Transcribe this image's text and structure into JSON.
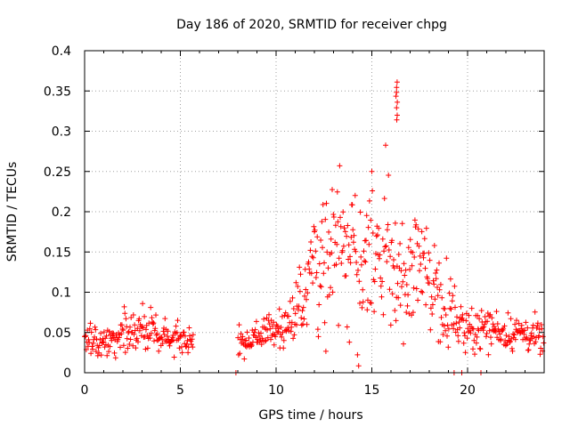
{
  "chart_data": {
    "type": "scatter",
    "title": "Day 186 of 2020, SRMTID for receiver chpg",
    "xlabel": "GPS time / hours",
    "ylabel": "SRMTID / TECUs",
    "xlim": [
      0,
      24
    ],
    "ylim": [
      0,
      0.4
    ],
    "x_ticks": [
      0,
      5,
      10,
      15,
      20
    ],
    "y_ticks": [
      0,
      0.05,
      0.1,
      0.15,
      0.2,
      0.25,
      0.3,
      0.35,
      0.4
    ],
    "x_tick_labels": [
      "0",
      "5",
      "10",
      "15",
      "20"
    ],
    "y_tick_labels": [
      "0",
      "0.05",
      "0.1",
      "0.15",
      "0.2",
      "0.25",
      "0.3",
      "0.35",
      "0.4"
    ],
    "grid": true,
    "marker": "+",
    "color": "#ff0000",
    "series": [
      {
        "name": "SRMTID",
        "profile_hours": [
          0,
          0.5,
          1,
          1.5,
          2,
          2.5,
          3,
          3.5,
          4,
          4.5,
          5,
          5.5,
          8.0,
          8.5,
          9,
          9.5,
          10,
          10.5,
          11,
          11.5,
          12,
          12.5,
          13,
          13.5,
          14,
          14.5,
          15,
          15.5,
          16,
          16.5,
          17,
          17.5,
          18,
          18.5,
          19,
          19.5,
          20,
          20.5,
          21,
          21.5,
          22,
          22.5,
          23,
          23.5,
          24
        ],
        "profile_median": [
          0.04,
          0.038,
          0.035,
          0.045,
          0.05,
          0.048,
          0.05,
          0.048,
          0.045,
          0.045,
          0.045,
          0.04,
          0.04,
          0.04,
          0.045,
          0.05,
          0.055,
          0.06,
          0.075,
          0.1,
          0.14,
          0.16,
          0.15,
          0.15,
          0.14,
          0.13,
          0.14,
          0.15,
          0.13,
          0.12,
          0.12,
          0.13,
          0.12,
          0.1,
          0.08,
          0.065,
          0.055,
          0.055,
          0.055,
          0.055,
          0.05,
          0.05,
          0.05,
          0.045,
          0.04
        ],
        "profile_spread": [
          0.015,
          0.015,
          0.015,
          0.018,
          0.02,
          0.018,
          0.018,
          0.018,
          0.015,
          0.015,
          0.015,
          0.012,
          0.012,
          0.012,
          0.014,
          0.016,
          0.018,
          0.02,
          0.025,
          0.035,
          0.06,
          0.07,
          0.06,
          0.06,
          0.07,
          0.07,
          0.08,
          0.09,
          0.08,
          0.06,
          0.05,
          0.05,
          0.045,
          0.04,
          0.03,
          0.02,
          0.018,
          0.018,
          0.018,
          0.018,
          0.016,
          0.016,
          0.016,
          0.016,
          0.015
        ],
        "peak_value": 0.365,
        "peak_hour": 16.3,
        "data_gap_hours": [
          5.7,
          8.0
        ],
        "zero_points_hours": [
          7.9,
          19.3,
          19.7,
          20.7
        ]
      }
    ]
  }
}
